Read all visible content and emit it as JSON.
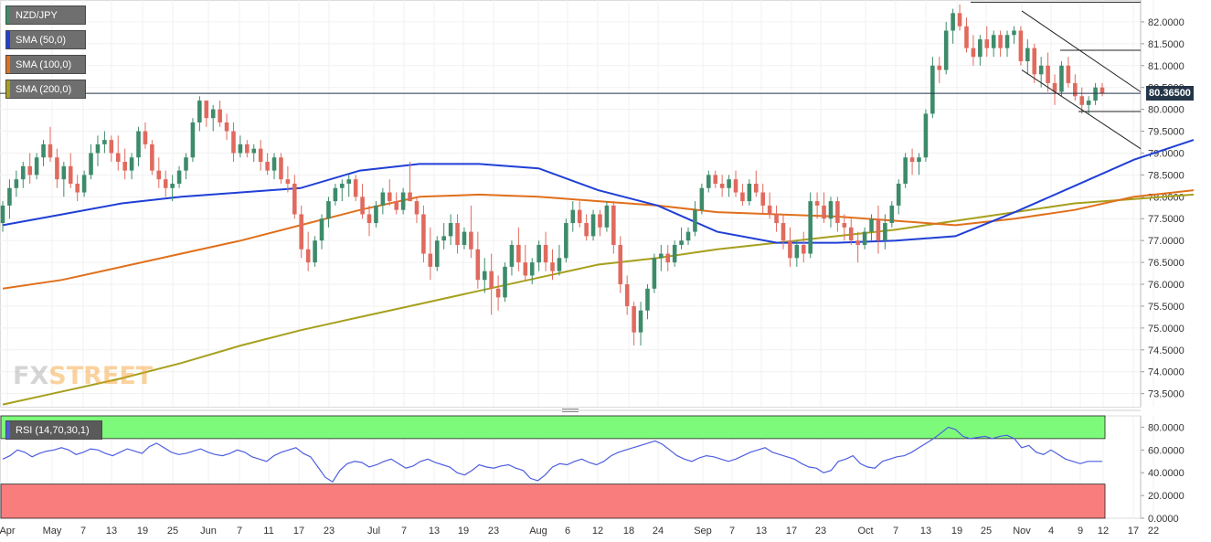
{
  "legend": {
    "symbol": "NZD/JPY",
    "sma50": "SMA (50,0)",
    "sma100": "SMA (100,0)",
    "sma200": "SMA (200,0)",
    "rsi": "RSI (14,70,30,1)"
  },
  "watermark": {
    "fx": "FX",
    "street": "STREET"
  },
  "last_price": "80.36500",
  "colors": {
    "bull": "#3d8b6a",
    "bear": "#e06a5e",
    "sma50": "#1f3fd6",
    "sma100": "#e0701c",
    "sma200": "#a6a01e",
    "rsi_line": "#4d5ee0",
    "rsi_overbought": "#7dfa7a",
    "rsi_oversold": "#fa7d7d"
  },
  "chart_data": {
    "type": "candlestick",
    "title": "NZD/JPY",
    "x_tick_labels": [
      "Apr",
      "May",
      "7",
      "13",
      "19",
      "25",
      "Jun",
      "7",
      "11",
      "17",
      "23",
      "Jul",
      "7",
      "13",
      "19",
      "23",
      "Aug",
      "6",
      "12",
      "18",
      "24",
      "Sep",
      "7",
      "13",
      "17",
      "23",
      "Oct",
      "7",
      "13",
      "19",
      "25",
      "Nov",
      "4",
      "9",
      "12",
      "17",
      "22"
    ],
    "ylim": [
      73.2,
      82.5
    ],
    "y_tick_labels": [
      "82.0000",
      "81.5000",
      "81.0000",
      "80.5000",
      "80.0000",
      "79.5000",
      "79.0000",
      "78.5000",
      "78.0000",
      "77.5000",
      "77.0000",
      "76.5000",
      "76.0000",
      "75.5000",
      "75.0000",
      "74.5000",
      "74.0000",
      "73.5000"
    ],
    "last_value": 80.365,
    "grid": true,
    "legend_position": "top-left",
    "ohlc": [
      [
        77.4,
        77.9,
        77.2,
        77.8
      ],
      [
        77.8,
        78.4,
        77.5,
        78.2
      ],
      [
        78.2,
        78.6,
        78.0,
        78.4
      ],
      [
        78.4,
        78.8,
        78.2,
        78.7
      ],
      [
        78.7,
        79.0,
        78.3,
        78.5
      ],
      [
        78.5,
        79.0,
        78.4,
        78.9
      ],
      [
        78.9,
        79.3,
        78.7,
        79.2
      ],
      [
        79.2,
        79.6,
        78.8,
        78.9
      ],
      [
        78.9,
        79.1,
        78.2,
        78.4
      ],
      [
        78.4,
        78.8,
        78.0,
        78.7
      ],
      [
        78.7,
        79.0,
        78.2,
        78.3
      ],
      [
        78.3,
        78.5,
        77.9,
        78.1
      ],
      [
        78.1,
        78.6,
        78.0,
        78.5
      ],
      [
        78.5,
        79.2,
        78.4,
        79.0
      ],
      [
        79.0,
        79.4,
        78.7,
        79.2
      ],
      [
        79.2,
        79.5,
        79.0,
        79.3
      ],
      [
        79.3,
        79.4,
        78.8,
        79.0
      ],
      [
        79.0,
        79.4,
        78.6,
        78.8
      ],
      [
        78.8,
        79.1,
        78.4,
        78.6
      ],
      [
        78.6,
        79.0,
        78.4,
        78.9
      ],
      [
        78.9,
        79.6,
        78.7,
        79.5
      ],
      [
        79.5,
        79.7,
        79.1,
        79.2
      ],
      [
        79.2,
        79.3,
        78.5,
        78.6
      ],
      [
        78.6,
        78.9,
        78.2,
        78.4
      ],
      [
        78.4,
        78.6,
        78.0,
        78.2
      ],
      [
        78.2,
        78.5,
        77.9,
        78.3
      ],
      [
        78.3,
        78.7,
        78.2,
        78.6
      ],
      [
        78.6,
        79.0,
        78.4,
        78.9
      ],
      [
        78.9,
        79.8,
        78.8,
        79.7
      ],
      [
        79.7,
        80.3,
        79.5,
        80.2
      ],
      [
        80.2,
        80.2,
        79.6,
        79.8
      ],
      [
        79.8,
        80.1,
        79.5,
        80.0
      ],
      [
        80.0,
        80.2,
        79.6,
        79.7
      ],
      [
        79.7,
        79.9,
        79.3,
        79.5
      ],
      [
        79.5,
        79.7,
        78.8,
        79.0
      ],
      [
        79.0,
        79.4,
        78.9,
        79.2
      ],
      [
        79.2,
        79.3,
        78.9,
        79.0
      ],
      [
        79.0,
        79.2,
        78.8,
        79.1
      ],
      [
        79.1,
        79.3,
        78.6,
        78.8
      ],
      [
        78.8,
        79.0,
        78.5,
        78.6
      ],
      [
        78.6,
        79.0,
        78.4,
        78.9
      ],
      [
        78.9,
        79.0,
        78.3,
        78.4
      ],
      [
        78.4,
        78.7,
        78.1,
        78.3
      ],
      [
        78.3,
        78.5,
        77.5,
        77.6
      ],
      [
        77.6,
        77.8,
        76.6,
        76.8
      ],
      [
        76.8,
        77.2,
        76.3,
        76.5
      ],
      [
        76.5,
        77.1,
        76.4,
        77.0
      ],
      [
        77.0,
        77.6,
        76.8,
        77.5
      ],
      [
        77.5,
        78.0,
        77.3,
        77.9
      ],
      [
        77.9,
        78.3,
        77.8,
        78.2
      ],
      [
        78.2,
        78.4,
        77.9,
        78.3
      ],
      [
        78.3,
        78.5,
        78.0,
        78.4
      ],
      [
        78.4,
        78.5,
        77.9,
        78.0
      ],
      [
        78.0,
        78.3,
        77.5,
        77.6
      ],
      [
        77.6,
        77.8,
        77.1,
        77.4
      ],
      [
        77.4,
        77.9,
        77.3,
        77.8
      ],
      [
        77.8,
        78.2,
        77.6,
        78.1
      ],
      [
        78.1,
        78.4,
        77.8,
        77.9
      ],
      [
        77.9,
        78.1,
        77.6,
        77.7
      ],
      [
        77.7,
        78.2,
        77.6,
        78.1
      ],
      [
        78.1,
        78.8,
        77.9,
        77.9
      ],
      [
        77.9,
        78.0,
        77.4,
        77.6
      ],
      [
        77.6,
        77.8,
        76.5,
        76.7
      ],
      [
        76.7,
        77.3,
        76.1,
        76.4
      ],
      [
        76.4,
        77.1,
        76.3,
        77.0
      ],
      [
        77.0,
        77.4,
        76.8,
        77.1
      ],
      [
        77.1,
        77.6,
        76.9,
        77.4
      ],
      [
        77.4,
        77.6,
        76.7,
        76.9
      ],
      [
        76.9,
        77.3,
        76.8,
        77.2
      ],
      [
        77.2,
        77.8,
        76.6,
        76.8
      ],
      [
        76.8,
        77.2,
        75.9,
        76.1
      ],
      [
        76.1,
        76.6,
        75.8,
        76.3
      ],
      [
        76.3,
        76.7,
        75.3,
        75.9
      ],
      [
        75.9,
        76.2,
        75.4,
        75.7
      ],
      [
        75.7,
        76.5,
        75.6,
        76.4
      ],
      [
        76.4,
        77.0,
        76.2,
        76.9
      ],
      [
        76.9,
        77.3,
        76.3,
        76.5
      ],
      [
        76.5,
        76.9,
        76.1,
        76.2
      ],
      [
        76.2,
        76.6,
        76.0,
        76.5
      ],
      [
        76.5,
        77.0,
        76.3,
        76.9
      ],
      [
        76.9,
        77.2,
        76.3,
        76.5
      ],
      [
        76.5,
        76.8,
        76.1,
        76.3
      ],
      [
        76.3,
        76.9,
        76.2,
        76.6
      ],
      [
        76.6,
        77.5,
        76.5,
        77.4
      ],
      [
        77.4,
        77.9,
        77.2,
        77.7
      ],
      [
        77.7,
        77.9,
        77.3,
        77.4
      ],
      [
        77.4,
        77.6,
        77.0,
        77.1
      ],
      [
        77.1,
        77.7,
        77.0,
        77.6
      ],
      [
        77.6,
        77.7,
        77.1,
        77.3
      ],
      [
        77.3,
        77.9,
        77.2,
        77.8
      ],
      [
        77.8,
        77.9,
        76.7,
        76.9
      ],
      [
        76.9,
        77.1,
        75.8,
        76.0
      ],
      [
        76.0,
        76.2,
        75.3,
        75.5
      ],
      [
        75.5,
        75.6,
        74.6,
        74.9
      ],
      [
        74.9,
        75.6,
        74.6,
        75.4
      ],
      [
        75.4,
        76.0,
        75.2,
        75.9
      ],
      [
        75.9,
        76.7,
        75.8,
        76.6
      ],
      [
        76.6,
        76.9,
        76.3,
        76.7
      ],
      [
        76.7,
        76.9,
        76.3,
        76.5
      ],
      [
        76.5,
        77.0,
        76.4,
        76.9
      ],
      [
        76.9,
        77.3,
        76.8,
        77.0
      ],
      [
        77.0,
        77.3,
        76.9,
        77.2
      ],
      [
        77.2,
        77.9,
        77.1,
        77.7
      ],
      [
        77.7,
        78.3,
        77.6,
        78.2
      ],
      [
        78.2,
        78.6,
        78.1,
        78.5
      ],
      [
        78.5,
        78.6,
        78.2,
        78.3
      ],
      [
        78.3,
        78.5,
        78.0,
        78.2
      ],
      [
        78.2,
        78.5,
        78.0,
        78.4
      ],
      [
        78.4,
        78.6,
        78.0,
        78.1
      ],
      [
        78.1,
        78.3,
        77.8,
        77.9
      ],
      [
        77.9,
        78.4,
        77.8,
        78.3
      ],
      [
        78.3,
        78.6,
        78.0,
        78.1
      ],
      [
        78.1,
        78.3,
        77.6,
        77.8
      ],
      [
        77.8,
        78.1,
        77.5,
        77.6
      ],
      [
        77.6,
        77.8,
        77.2,
        77.4
      ],
      [
        77.4,
        77.6,
        76.8,
        77.0
      ],
      [
        77.0,
        77.3,
        76.4,
        76.6
      ],
      [
        76.6,
        77.0,
        76.4,
        76.9
      ],
      [
        76.9,
        77.2,
        76.5,
        76.7
      ],
      [
        76.7,
        78.1,
        76.6,
        77.9
      ],
      [
        77.9,
        78.1,
        77.5,
        77.8
      ],
      [
        77.8,
        78.1,
        77.4,
        77.5
      ],
      [
        77.5,
        78.0,
        77.3,
        77.9
      ],
      [
        77.9,
        78.0,
        77.2,
        77.4
      ],
      [
        77.4,
        77.6,
        77.0,
        77.3
      ],
      [
        77.3,
        77.5,
        76.9,
        77.0
      ],
      [
        77.0,
        77.2,
        76.5,
        76.9
      ],
      [
        76.9,
        77.3,
        76.8,
        77.2
      ],
      [
        77.2,
        77.6,
        77.0,
        77.5
      ],
      [
        77.5,
        77.8,
        76.7,
        77.0
      ],
      [
        77.0,
        77.6,
        76.8,
        77.4
      ],
      [
        77.4,
        77.9,
        77.3,
        77.8
      ],
      [
        77.8,
        78.4,
        77.6,
        78.3
      ],
      [
        78.3,
        79.0,
        78.2,
        78.9
      ],
      [
        78.9,
        79.1,
        78.5,
        78.8
      ],
      [
        78.8,
        79.0,
        78.5,
        78.9
      ],
      [
        78.9,
        80.0,
        78.8,
        79.9
      ],
      [
        79.9,
        81.2,
        79.8,
        81.0
      ],
      [
        81.0,
        81.2,
        80.6,
        80.9
      ],
      [
        80.9,
        82.0,
        80.8,
        81.8
      ],
      [
        81.8,
        82.3,
        81.5,
        82.2
      ],
      [
        82.2,
        82.4,
        81.8,
        81.9
      ],
      [
        81.9,
        82.1,
        81.3,
        81.4
      ],
      [
        81.4,
        81.7,
        81.0,
        81.2
      ],
      [
        81.2,
        81.7,
        81.0,
        81.6
      ],
      [
        81.6,
        81.9,
        81.2,
        81.4
      ],
      [
        81.4,
        81.8,
        81.2,
        81.7
      ],
      [
        81.7,
        81.8,
        81.2,
        81.4
      ],
      [
        81.4,
        81.8,
        81.2,
        81.7
      ],
      [
        81.7,
        81.9,
        81.5,
        81.8
      ],
      [
        81.8,
        81.9,
        81.0,
        81.1
      ],
      [
        81.1,
        81.6,
        80.8,
        81.4
      ],
      [
        81.4,
        81.5,
        80.6,
        80.8
      ],
      [
        80.8,
        81.2,
        80.5,
        81.0
      ],
      [
        81.0,
        81.3,
        80.4,
        80.6
      ],
      [
        80.6,
        80.8,
        80.1,
        80.4
      ],
      [
        80.4,
        81.1,
        80.3,
        81.0
      ],
      [
        81.0,
        81.2,
        80.5,
        80.6
      ],
      [
        80.6,
        80.8,
        80.2,
        80.3
      ],
      [
        80.3,
        80.5,
        79.9,
        80.1
      ],
      [
        80.1,
        80.3,
        79.9,
        80.2
      ],
      [
        80.2,
        80.6,
        80.1,
        80.5
      ],
      [
        80.5,
        80.6,
        80.3,
        80.365
      ]
    ],
    "sma50": [
      [
        0,
        77.35
      ],
      [
        0.05,
        77.6
      ],
      [
        0.1,
        77.85
      ],
      [
        0.15,
        78.0
      ],
      [
        0.2,
        78.1
      ],
      [
        0.25,
        78.2
      ],
      [
        0.3,
        78.6
      ],
      [
        0.35,
        78.75
      ],
      [
        0.4,
        78.75
      ],
      [
        0.45,
        78.65
      ],
      [
        0.5,
        78.15
      ],
      [
        0.55,
        77.8
      ],
      [
        0.6,
        77.2
      ],
      [
        0.65,
        76.95
      ],
      [
        0.7,
        76.95
      ],
      [
        0.75,
        77.0
      ],
      [
        0.8,
        77.1
      ],
      [
        0.85,
        77.65
      ],
      [
        0.9,
        78.25
      ],
      [
        0.95,
        78.85
      ],
      [
        1.0,
        79.3
      ]
    ],
    "sma100": [
      [
        0,
        75.9
      ],
      [
        0.05,
        76.1
      ],
      [
        0.1,
        76.4
      ],
      [
        0.15,
        76.7
      ],
      [
        0.2,
        77.0
      ],
      [
        0.25,
        77.35
      ],
      [
        0.3,
        77.7
      ],
      [
        0.35,
        78.0
      ],
      [
        0.4,
        78.05
      ],
      [
        0.45,
        78.0
      ],
      [
        0.5,
        77.9
      ],
      [
        0.55,
        77.8
      ],
      [
        0.6,
        77.65
      ],
      [
        0.65,
        77.6
      ],
      [
        0.7,
        77.55
      ],
      [
        0.75,
        77.45
      ],
      [
        0.8,
        77.35
      ],
      [
        0.85,
        77.5
      ],
      [
        0.9,
        77.7
      ],
      [
        0.95,
        78.0
      ],
      [
        1.0,
        78.15
      ]
    ],
    "sma200": [
      [
        0,
        73.25
      ],
      [
        0.05,
        73.55
      ],
      [
        0.1,
        73.85
      ],
      [
        0.15,
        74.2
      ],
      [
        0.2,
        74.6
      ],
      [
        0.25,
        74.95
      ],
      [
        0.3,
        75.25
      ],
      [
        0.35,
        75.55
      ],
      [
        0.4,
        75.85
      ],
      [
        0.45,
        76.15
      ],
      [
        0.5,
        76.45
      ],
      [
        0.55,
        76.6
      ],
      [
        0.6,
        76.8
      ],
      [
        0.65,
        76.95
      ],
      [
        0.7,
        77.1
      ],
      [
        0.75,
        77.25
      ],
      [
        0.8,
        77.45
      ],
      [
        0.85,
        77.65
      ],
      [
        0.9,
        77.85
      ],
      [
        0.95,
        77.95
      ],
      [
        1.0,
        78.05
      ]
    ],
    "rsi": {
      "ylim": [
        0,
        90
      ],
      "tick_labels": [
        "80.0000",
        "60.0000",
        "40.0000",
        "20.0000",
        "0.0000"
      ],
      "overbought": 70,
      "oversold": 30,
      "values": [
        52,
        55,
        60,
        58,
        54,
        57,
        59,
        60,
        62,
        60,
        56,
        58,
        61,
        60,
        57,
        55,
        58,
        61,
        59,
        57,
        63,
        66,
        62,
        58,
        56,
        57,
        59,
        61,
        58,
        56,
        55,
        57,
        60,
        58,
        54,
        52,
        50,
        55,
        58,
        60,
        62,
        57,
        54,
        45,
        36,
        32,
        42,
        48,
        50,
        49,
        45,
        47,
        50,
        52,
        48,
        44,
        46,
        50,
        52,
        49,
        47,
        45,
        40,
        38,
        42,
        47,
        45,
        44,
        46,
        47,
        44,
        42,
        35,
        33,
        38,
        45,
        48,
        47,
        50,
        52,
        49,
        47,
        50,
        55,
        58,
        60,
        62,
        64,
        66,
        68,
        65,
        60,
        55,
        52,
        50,
        53,
        55,
        54,
        52,
        50,
        52,
        55,
        58,
        60,
        62,
        58,
        56,
        54,
        52,
        48,
        45,
        44,
        40,
        42,
        50,
        52,
        55,
        48,
        45,
        44,
        50,
        52,
        54,
        55,
        58,
        62,
        66,
        70,
        75,
        80,
        78,
        72,
        70,
        71,
        72,
        70,
        72,
        73,
        70,
        62,
        64,
        58,
        56,
        60,
        56,
        52,
        50,
        48,
        50,
        50,
        50
      ]
    }
  }
}
